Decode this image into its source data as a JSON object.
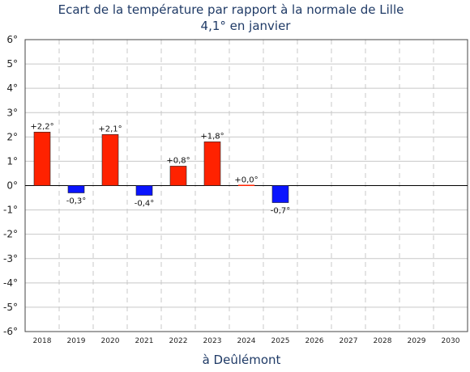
{
  "chart_data": {
    "type": "bar",
    "title": "Ecart de la température par rapport à la normale de Lille",
    "subtitle": "4,1° en janvier",
    "xlabel": "à Deûlémont",
    "ylabel": "",
    "categories": [
      "2018",
      "2019",
      "2020",
      "2021",
      "2022",
      "2023",
      "2024",
      "2025",
      "2026",
      "2027",
      "2028",
      "2029",
      "2030"
    ],
    "values": [
      2.2,
      -0.3,
      2.1,
      -0.4,
      0.8,
      1.8,
      0.0,
      -0.7,
      null,
      null,
      null,
      null,
      null
    ],
    "data_labels": [
      "+2,2°",
      "-0,3°",
      "+2,1°",
      "-0,4°",
      "+0,8°",
      "+1,8°",
      "+0,0°",
      "-0,7°",
      "",
      "",
      "",
      "",
      ""
    ],
    "ylim": [
      -6,
      6
    ],
    "yticks": [
      6,
      5,
      4,
      3,
      2,
      1,
      0,
      -1,
      -2,
      -3,
      -4,
      -5,
      -6
    ],
    "ytick_labels": [
      "6°",
      "5°",
      "4°",
      "3°",
      "2°",
      "1°",
      "0°",
      "-1°",
      "-2°",
      "-3°",
      "-4°",
      "-5°",
      "-6°"
    ],
    "grid": true,
    "colors": {
      "positive": "#ff2200",
      "negative": "#0a14ff",
      "grid": "#c8c8c8",
      "title": "#1f3a66"
    }
  }
}
